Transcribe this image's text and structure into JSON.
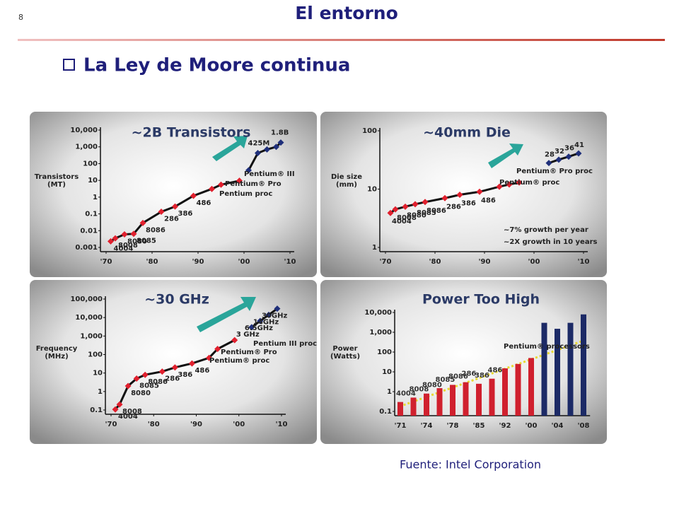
{
  "slide": {
    "number": "8",
    "title": "El entorno",
    "heading": "La Ley de Moore continua",
    "source": "Fuente: Intel Corporation"
  },
  "chart_data": [
    {
      "type": "line",
      "title": "~2B Transistors",
      "ylabel": "Transistors (MT)",
      "log_y": true,
      "xlim": [
        1970,
        2010
      ],
      "xticks": [
        {
          "value": 1970,
          "label": "'70"
        },
        {
          "value": 1980,
          "label": "'80"
        },
        {
          "value": 1990,
          "label": "'90"
        },
        {
          "value": 2000,
          "label": "'00"
        },
        {
          "value": 2010,
          "label": "'10"
        }
      ],
      "ylim": [
        0.001,
        10000
      ],
      "yticks": [
        0.001,
        0.01,
        0.1,
        1,
        10,
        100,
        {
          "value": 1000,
          "label": "1,000"
        },
        {
          "value": 10000,
          "label": "10,000"
        }
      ],
      "line_color": "#111111",
      "series": [
        {
          "color": "#e0202e",
          "x": [
            1971,
            1972,
            1974,
            1976,
            1978,
            1982,
            1985,
            1989,
            1993,
            1995,
            1999
          ],
          "values": [
            0.0023,
            0.0035,
            0.006,
            0.0065,
            0.029,
            0.134,
            0.275,
            1.2,
            3.1,
            5.5,
            9.5
          ],
          "point_labels": [
            "4004",
            "8008",
            "8080",
            "8085",
            "8086",
            "286",
            "386",
            "486",
            null,
            null,
            null
          ]
        },
        {
          "color": "#1f2f7a",
          "x": [
            2001,
            2003,
            2005,
            2007,
            2008
          ],
          "values": [
            40,
            425,
            700,
            1000,
            1800
          ],
          "point_labels": [
            null,
            "425M",
            null,
            null,
            "1.8B"
          ]
        }
      ],
      "annotations": [
        "Pentium® III",
        "Pentium® Pro",
        "Pentium proc"
      ]
    },
    {
      "type": "line",
      "title": "~40mm Die",
      "ylabel": "Die size (mm)",
      "log_y": true,
      "xlim": [
        1970,
        2010
      ],
      "xticks": [
        {
          "value": 1970,
          "label": "'70"
        },
        {
          "value": 1980,
          "label": "'80"
        },
        {
          "value": 1990,
          "label": "'90"
        },
        {
          "value": 2000,
          "label": "'00"
        },
        {
          "value": 2010,
          "label": "'10"
        }
      ],
      "ylim": [
        1,
        100
      ],
      "yticks": [
        1,
        10,
        100
      ],
      "line_color": "#111111",
      "series": [
        {
          "color": "#e0202e",
          "x": [
            1971,
            1972,
            1974,
            1976,
            1978,
            1982,
            1985,
            1989,
            1993,
            1995,
            1997
          ],
          "values": [
            3.9,
            4.5,
            5,
            5.5,
            6,
            7,
            8,
            9,
            11,
            12,
            13
          ],
          "point_labels": [
            "4004",
            "8008",
            "8080",
            "8085",
            "8086",
            "286",
            "386",
            "486",
            null,
            null,
            null
          ]
        },
        {
          "color": "#1f2f7a",
          "x": [
            2003,
            2005,
            2007,
            2009
          ],
          "values": [
            28,
            32,
            36,
            41
          ],
          "data_labels": true
        }
      ],
      "annotations": [
        "Pentium® Pro proc",
        "Pentium® proc",
        "~7% growth per year",
        "~2X growth in 10 years"
      ]
    },
    {
      "type": "line",
      "title": "~30 GHz",
      "ylabel": "Frequency (MHz)",
      "log_y": true,
      "xlim": [
        1970,
        2010
      ],
      "xticks": [
        {
          "value": 1970,
          "label": "'70"
        },
        {
          "value": 1980,
          "label": "'80"
        },
        {
          "value": 1990,
          "label": "'90"
        },
        {
          "value": 2000,
          "label": "'00"
        },
        {
          "value": 2010,
          "label": "'10"
        }
      ],
      "ylim": [
        0.1,
        100000
      ],
      "yticks": [
        0.1,
        1,
        10,
        100,
        {
          "value": 1000,
          "label": "1,000"
        },
        {
          "value": 10000,
          "label": "10,000"
        },
        {
          "value": 100000,
          "label": "100,000"
        }
      ],
      "line_color": "#111111",
      "series": [
        {
          "color": "#e0202e",
          "x": [
            1971,
            1972,
            1974,
            1976,
            1978,
            1982,
            1985,
            1989,
            1993,
            1995,
            1999
          ],
          "values": [
            0.108,
            0.2,
            2,
            5,
            8,
            12,
            20,
            33,
            66,
            200,
            600
          ],
          "point_labels": [
            "4004",
            "8008",
            "8080",
            "8085",
            "8086",
            "286",
            "386",
            "486",
            null,
            null,
            null
          ]
        },
        {
          "color": "#1f2f7a",
          "x": [
            2003,
            2005,
            2007,
            2009
          ],
          "values": [
            3000,
            6500,
            14000,
            30000
          ],
          "point_labels": [
            "3 GHz",
            "6.5GHz",
            "14GHz",
            "30GHz"
          ]
        }
      ],
      "annotations": [
        "Pentium III proc",
        "Pentium® Pro",
        "Pentium® proc"
      ]
    },
    {
      "type": "bar",
      "title": "Power Too High",
      "ylabel": "Power (Watts)",
      "log_y": true,
      "categories": [
        "'71",
        null,
        "'74",
        null,
        "'78",
        null,
        "'85",
        null,
        "'92",
        null,
        "'00",
        null,
        "'04",
        null,
        "'08"
      ],
      "ylim": [
        0.1,
        10000
      ],
      "yticks": [
        0.1,
        1,
        10,
        100,
        {
          "value": 1000,
          "label": "1,000"
        },
        {
          "value": 10000,
          "label": "10,000"
        }
      ],
      "series": [
        {
          "color": "#d0202e",
          "values": [
            0.3,
            0.5,
            0.8,
            1.5,
            2.2,
            3,
            2.5,
            4.5,
            15,
            25,
            50,
            null,
            null,
            null,
            null
          ],
          "point_labels": [
            "4004",
            "8008",
            "8080",
            "8085",
            "8086",
            "286",
            "386",
            "486",
            null,
            null,
            null,
            null,
            null,
            null,
            null
          ]
        },
        {
          "color": "#1c2a66",
          "values": [
            null,
            null,
            null,
            null,
            null,
            null,
            null,
            null,
            null,
            null,
            null,
            3000,
            1500,
            3000,
            8000
          ]
        }
      ],
      "annotations": [
        "Pentium® processors"
      ]
    }
  ]
}
